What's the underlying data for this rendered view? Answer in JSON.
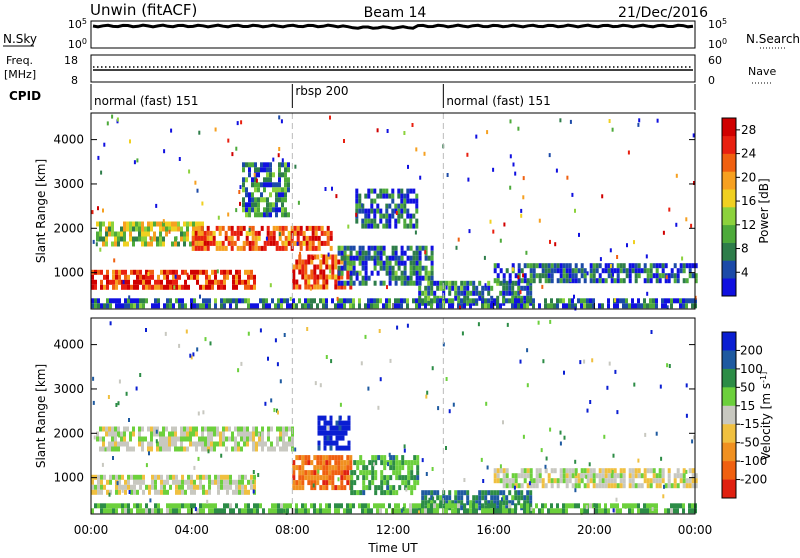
{
  "header": {
    "title": "Unwin (fitACF)",
    "beam": "Beam 14",
    "date": "21/Dec/2016"
  },
  "noise_panel": {
    "left_label": "N.Sky",
    "right_label": "N.Search",
    "ticks_left": [
      "10^5",
      "10^0"
    ],
    "ticks_right": [
      "10^5",
      "10^0"
    ]
  },
  "freq_panel": {
    "left_label": "Freq.",
    "left_unit": "[MHz]",
    "ticks_left": [
      "18",
      "8"
    ],
    "ticks_right": [
      "60",
      "0"
    ],
    "right_label": "Nave"
  },
  "cpid": {
    "label": "CPID",
    "segments": [
      {
        "name": "normal (fast) 151",
        "start_hour": 0
      },
      {
        "name": "rbsp 200",
        "start_hour": 8
      },
      {
        "name": "normal (fast) 151",
        "start_hour": 14
      }
    ]
  },
  "chart_data": [
    {
      "type": "heatmap",
      "parameter": "power",
      "ylabel": "Slant Range [km]",
      "xlabel": "",
      "x_range_hours": [
        0,
        24
      ],
      "ylim": [
        180,
        4600
      ],
      "yticks": [
        1000,
        2000,
        3000,
        4000
      ],
      "colorbar": {
        "label": "Power [dB]",
        "ticks": [
          "4",
          "8",
          "12",
          "16",
          "20",
          "24",
          "28"
        ],
        "colors": [
          "#1010e0",
          "#1c4aa8",
          "#2e7d4a",
          "#4daa3a",
          "#8cd23c",
          "#f0d020",
          "#f6a020",
          "#f06010",
          "#e82010",
          "#d00000"
        ]
      },
      "echo_regions": [
        {
          "t0": 0.0,
          "t1": 6.5,
          "r0": 600,
          "r1": 1050,
          "level": 0.85
        },
        {
          "t0": 0.2,
          "t1": 4.5,
          "r0": 1650,
          "r1": 2150,
          "level": 0.45
        },
        {
          "t0": 4.0,
          "t1": 9.5,
          "r0": 1500,
          "r1": 2050,
          "level": 0.8
        },
        {
          "t0": 6.0,
          "t1": 7.8,
          "r0": 2300,
          "r1": 3500,
          "level": 0.25
        },
        {
          "t0": 8.0,
          "t1": 10.3,
          "r0": 700,
          "r1": 1400,
          "level": 0.8
        },
        {
          "t0": 9.8,
          "t1": 13.5,
          "r0": 700,
          "r1": 1600,
          "level": 0.2
        },
        {
          "t0": 10.5,
          "t1": 13.0,
          "r0": 2000,
          "r1": 2900,
          "level": 0.15
        },
        {
          "t0": 13.0,
          "t1": 17.5,
          "r0": 300,
          "r1": 800,
          "level": 0.2
        },
        {
          "t0": 16.0,
          "t1": 24.0,
          "r0": 800,
          "r1": 1200,
          "level": 0.15
        },
        {
          "t0": 0.0,
          "t1": 24.0,
          "r0": 200,
          "r1": 400,
          "level": 0.2
        }
      ]
    },
    {
      "type": "heatmap",
      "parameter": "velocity",
      "ylabel": "Slant Range [km]",
      "xlabel": "Time UT",
      "x_range_hours": [
        0,
        24
      ],
      "xticks": [
        "00:00",
        "04:00",
        "08:00",
        "12:00",
        "16:00",
        "20:00",
        "00:00"
      ],
      "ylim": [
        180,
        4600
      ],
      "yticks": [
        1000,
        2000,
        3000,
        4000
      ],
      "colorbar": {
        "label": "Velocity [m s^-1]",
        "ticks": [
          "200",
          "100",
          "50",
          "15",
          "-15",
          "-50",
          "-100",
          "-200"
        ],
        "colors": [
          "#0a1ed2",
          "#1e5aa0",
          "#2c8c46",
          "#6cd03c",
          "#c8c8c0",
          "#f0c040",
          "#f09020",
          "#f06010",
          "#e02010"
        ]
      },
      "echo_regions": [
        {
          "t0": 0.0,
          "t1": 6.5,
          "r0": 600,
          "r1": 1050,
          "level": 0.0
        },
        {
          "t0": 0.2,
          "t1": 8.0,
          "r0": 1600,
          "r1": 2150,
          "level": 0.05
        },
        {
          "t0": 8.0,
          "t1": 10.3,
          "r0": 750,
          "r1": 1500,
          "level": -0.6
        },
        {
          "t0": 9.0,
          "t1": 10.2,
          "r0": 1700,
          "r1": 2400,
          "level": 0.95
        },
        {
          "t0": 10.3,
          "t1": 13.0,
          "r0": 700,
          "r1": 1500,
          "level": 0.35
        },
        {
          "t0": 13.0,
          "t1": 17.5,
          "r0": 300,
          "r1": 700,
          "level": 0.5
        },
        {
          "t0": 16.0,
          "t1": 24.0,
          "r0": 800,
          "r1": 1200,
          "level": 0.0
        },
        {
          "t0": 0.0,
          "t1": 24.0,
          "r0": 200,
          "r1": 400,
          "level": 0.3
        }
      ]
    }
  ]
}
